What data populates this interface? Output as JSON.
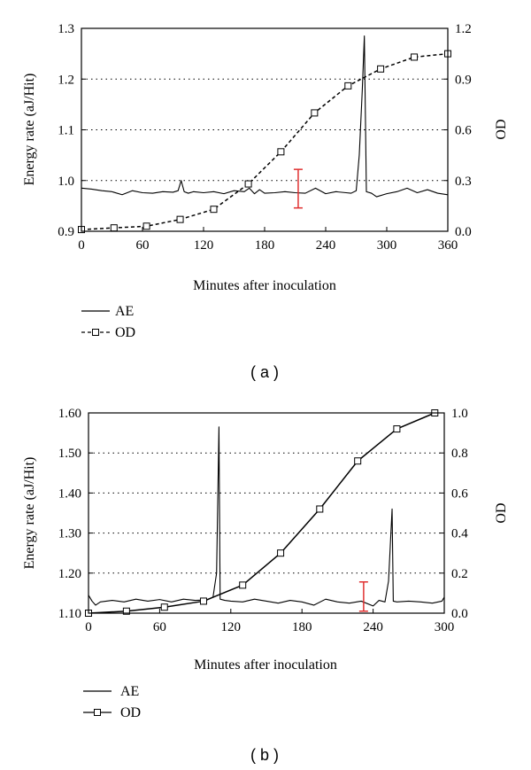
{
  "chart_data": [
    {
      "type": "line",
      "panel_label": "( a )",
      "xlabel": "Minutes after inoculation",
      "ylabel": "Energy rate (aJ/Hit)",
      "y2label": "OD",
      "xlim": [
        0,
        360
      ],
      "ylim": [
        0.9,
        1.3
      ],
      "y2lim": [
        0.0,
        1.2
      ],
      "x_ticks": [
        "0",
        "60",
        "120",
        "180",
        "240",
        "300",
        "360"
      ],
      "x_tick_values": [
        0,
        60,
        120,
        180,
        240,
        300,
        360
      ],
      "y_ticks": [
        "0.9",
        "1.0",
        "1.1",
        "1.2",
        "1.3"
      ],
      "y_tick_values": [
        0.9,
        1.0,
        1.1,
        1.2,
        1.3
      ],
      "y2_ticks": [
        "0.0",
        "0.3",
        "0.6",
        "0.9",
        "1.2"
      ],
      "y2_tick_values": [
        0.0,
        0.3,
        0.6,
        0.9,
        1.2
      ],
      "grid": "dotted horizontal",
      "legend_position": "bottom-left",
      "series": [
        {
          "name": "AE",
          "axis": "left",
          "style": "solid",
          "marker": "none",
          "x": [
            0,
            10,
            20,
            30,
            40,
            50,
            60,
            70,
            80,
            90,
            95,
            98,
            101,
            105,
            110,
            120,
            130,
            140,
            150,
            160,
            165,
            170,
            175,
            180,
            190,
            200,
            210,
            220,
            230,
            240,
            250,
            260,
            265,
            270,
            273,
            276,
            278,
            280,
            285,
            290,
            300,
            310,
            320,
            330,
            340,
            350,
            360
          ],
          "y": [
            0.985,
            0.983,
            0.98,
            0.978,
            0.972,
            0.98,
            0.976,
            0.975,
            0.978,
            0.977,
            0.98,
            1.0,
            0.978,
            0.975,
            0.978,
            0.976,
            0.978,
            0.974,
            0.98,
            0.978,
            0.985,
            0.974,
            0.982,
            0.975,
            0.976,
            0.978,
            0.976,
            0.975,
            0.985,
            0.974,
            0.978,
            0.976,
            0.975,
            0.98,
            1.05,
            1.18,
            1.285,
            0.978,
            0.975,
            0.968,
            0.974,
            0.978,
            0.985,
            0.976,
            0.982,
            0.975,
            0.972
          ]
        },
        {
          "name": "OD",
          "axis": "right",
          "style": "dashed",
          "marker": "square",
          "x": [
            0,
            32,
            64,
            97,
            130,
            164,
            196,
            229,
            262,
            294,
            327,
            360
          ],
          "y": [
            0.01,
            0.02,
            0.03,
            0.07,
            0.13,
            0.28,
            0.47,
            0.7,
            0.86,
            0.96,
            1.03,
            1.05
          ]
        }
      ],
      "error_bar": {
        "x": 213,
        "low": 0.946,
        "high": 1.022,
        "color": "#e03030"
      }
    },
    {
      "type": "line",
      "panel_label": "( b )",
      "xlabel": "Minutes after inoculation",
      "ylabel": "Energy rate (aJ/Hit)",
      "y2label": "OD",
      "xlim": [
        0,
        300
      ],
      "ylim": [
        1.1,
        1.6
      ],
      "y2lim": [
        0.0,
        1.0
      ],
      "x_ticks": [
        "0",
        "60",
        "120",
        "180",
        "240",
        "300"
      ],
      "x_tick_values": [
        0,
        60,
        120,
        180,
        240,
        300
      ],
      "y_ticks": [
        "1.10",
        "1.20",
        "1.30",
        "1.40",
        "1.50",
        "1.60"
      ],
      "y_tick_values": [
        1.1,
        1.2,
        1.3,
        1.4,
        1.5,
        1.6
      ],
      "y2_ticks": [
        "0.0",
        "0.2",
        "0.4",
        "0.6",
        "0.8",
        "1.0"
      ],
      "y2_tick_values": [
        0.0,
        0.2,
        0.4,
        0.6,
        0.8,
        1.0
      ],
      "grid": "dotted horizontal",
      "legend_position": "bottom-left",
      "series": [
        {
          "name": "AE",
          "axis": "left",
          "style": "solid",
          "marker": "none",
          "x": [
            0,
            3,
            6,
            10,
            20,
            30,
            40,
            50,
            60,
            70,
            80,
            90,
            100,
            105,
            108,
            109,
            110,
            111,
            115,
            120,
            130,
            140,
            150,
            160,
            170,
            180,
            190,
            200,
            210,
            220,
            230,
            240,
            245,
            250,
            253,
            255,
            256,
            257,
            260,
            270,
            280,
            290,
            298,
            300
          ],
          "y": [
            1.145,
            1.13,
            1.12,
            1.128,
            1.132,
            1.128,
            1.135,
            1.13,
            1.134,
            1.128,
            1.135,
            1.132,
            1.133,
            1.14,
            1.2,
            1.38,
            1.565,
            1.135,
            1.132,
            1.13,
            1.128,
            1.135,
            1.13,
            1.125,
            1.132,
            1.128,
            1.12,
            1.135,
            1.128,
            1.125,
            1.13,
            1.118,
            1.132,
            1.128,
            1.18,
            1.3,
            1.36,
            1.13,
            1.128,
            1.13,
            1.128,
            1.125,
            1.13,
            1.14
          ]
        },
        {
          "name": "OD",
          "axis": "right",
          "style": "solid",
          "marker": "square",
          "x": [
            0,
            32,
            64,
            97,
            130,
            162,
            195,
            227,
            260,
            292
          ],
          "y": [
            0.0,
            0.01,
            0.03,
            0.06,
            0.14,
            0.3,
            0.52,
            0.76,
            0.92,
            1.0
          ]
        }
      ],
      "error_bar": {
        "x": 232,
        "low": 1.105,
        "high": 1.178,
        "color": "#e03030"
      }
    }
  ]
}
